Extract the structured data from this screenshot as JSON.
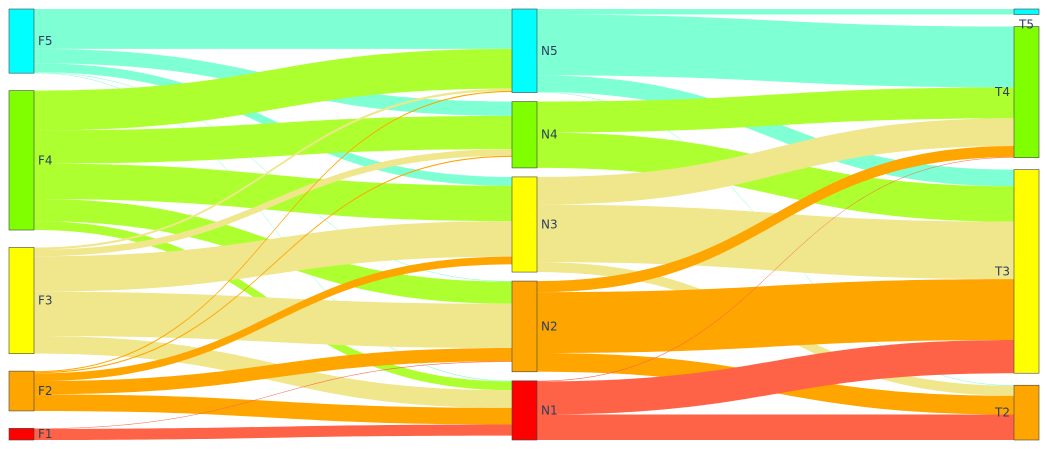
{
  "chart_data": {
    "type": "sankey",
    "title": "",
    "nodes": [
      {
        "id": "F1",
        "label": "F1",
        "column": 0,
        "color": "#FF0000"
      },
      {
        "id": "F2",
        "label": "F2",
        "column": 0,
        "color": "#FFA500"
      },
      {
        "id": "F3",
        "label": "F3",
        "column": 0,
        "color": "#FFFF00"
      },
      {
        "id": "F4",
        "label": "F4",
        "column": 0,
        "color": "#7FFF00"
      },
      {
        "id": "F5",
        "label": "F5",
        "column": 0,
        "color": "#00FFFF"
      },
      {
        "id": "N1",
        "label": "N1",
        "column": 1,
        "color": "#FF0000"
      },
      {
        "id": "N2",
        "label": "N2",
        "column": 1,
        "color": "#FFA500"
      },
      {
        "id": "N3",
        "label": "N3",
        "column": 1,
        "color": "#FFFF00"
      },
      {
        "id": "N4",
        "label": "N4",
        "column": 1,
        "color": "#7FFF00"
      },
      {
        "id": "N5",
        "label": "N5",
        "column": 1,
        "color": "#00FFFF"
      },
      {
        "id": "T2",
        "label": "T2",
        "column": 2,
        "color": "#FFA500"
      },
      {
        "id": "T3",
        "label": "T3",
        "column": 2,
        "color": "#FFFF00"
      },
      {
        "id": "T4",
        "label": "T4",
        "column": 2,
        "color": "#7FFF00"
      },
      {
        "id": "T5",
        "label": "T5",
        "column": 2,
        "color": "#00FFFF"
      }
    ],
    "links": [
      {
        "source": "F5",
        "target": "N5",
        "value": 36,
        "color": "#7FFFD4"
      },
      {
        "source": "F5",
        "target": "N4",
        "value": 13,
        "color": "#7FFFD4"
      },
      {
        "source": "F5",
        "target": "N3",
        "value": 8,
        "color": "#7FFFD4"
      },
      {
        "source": "F5",
        "target": "N2",
        "value": 0.5,
        "color": "#7FFFD4"
      },
      {
        "source": "F5",
        "target": "N1",
        "value": 0.5,
        "color": "#7FFFD4"
      },
      {
        "source": "F4",
        "target": "N5",
        "value": 36,
        "color": "#ADFF2F"
      },
      {
        "source": "F4",
        "target": "N4",
        "value": 30,
        "color": "#ADFF2F"
      },
      {
        "source": "F4",
        "target": "N3",
        "value": 32,
        "color": "#ADFF2F"
      },
      {
        "source": "F4",
        "target": "N2",
        "value": 20,
        "color": "#ADFF2F"
      },
      {
        "source": "F4",
        "target": "N1",
        "value": 8,
        "color": "#ADFF2F"
      },
      {
        "source": "F3",
        "target": "N5",
        "value": 2,
        "color": "#F0E68C"
      },
      {
        "source": "F3",
        "target": "N4",
        "value": 6,
        "color": "#F0E68C"
      },
      {
        "source": "F3",
        "target": "N3",
        "value": 32,
        "color": "#F0E68C"
      },
      {
        "source": "F3",
        "target": "N2",
        "value": 40,
        "color": "#F0E68C"
      },
      {
        "source": "F3",
        "target": "N1",
        "value": 16,
        "color": "#F0E68C"
      },
      {
        "source": "F2",
        "target": "N5",
        "value": 1,
        "color": "#FFA500"
      },
      {
        "source": "F2",
        "target": "N4",
        "value": 1,
        "color": "#FFA500"
      },
      {
        "source": "F2",
        "target": "N3",
        "value": 7,
        "color": "#FFA500"
      },
      {
        "source": "F2",
        "target": "N2",
        "value": 12,
        "color": "#FFA500"
      },
      {
        "source": "F2",
        "target": "N1",
        "value": 15,
        "color": "#FFA500"
      },
      {
        "source": "F1",
        "target": "N2",
        "value": 0.5,
        "color": "#FF6347"
      },
      {
        "source": "F1",
        "target": "N1",
        "value": 10,
        "color": "#FF6347"
      },
      {
        "source": "N5",
        "target": "T5",
        "value": 5,
        "color": "#7FFFD4"
      },
      {
        "source": "N5",
        "target": "T4",
        "value": 55,
        "color": "#7FFFD4"
      },
      {
        "source": "N5",
        "target": "T3",
        "value": 15,
        "color": "#7FFFD4"
      },
      {
        "source": "N5",
        "target": "T2",
        "value": 0.5,
        "color": "#7FFFD4"
      },
      {
        "source": "N4",
        "target": "T4",
        "value": 28,
        "color": "#ADFF2F"
      },
      {
        "source": "N4",
        "target": "T3",
        "value": 32,
        "color": "#ADFF2F"
      },
      {
        "source": "N3",
        "target": "T4",
        "value": 25,
        "color": "#F0E68C"
      },
      {
        "source": "N3",
        "target": "T3",
        "value": 52,
        "color": "#F0E68C"
      },
      {
        "source": "N3",
        "target": "T2",
        "value": 9,
        "color": "#F0E68C"
      },
      {
        "source": "N2",
        "target": "T4",
        "value": 10,
        "color": "#FFA500"
      },
      {
        "source": "N2",
        "target": "T3",
        "value": 55,
        "color": "#FFA500"
      },
      {
        "source": "N2",
        "target": "T2",
        "value": 17,
        "color": "#FFA500"
      },
      {
        "source": "N1",
        "target": "T4",
        "value": 0.5,
        "color": "#FF6347"
      },
      {
        "source": "N1",
        "target": "T3",
        "value": 30,
        "color": "#FF6347"
      },
      {
        "source": "N1",
        "target": "T2",
        "value": 23,
        "color": "#FF6347"
      }
    ]
  }
}
